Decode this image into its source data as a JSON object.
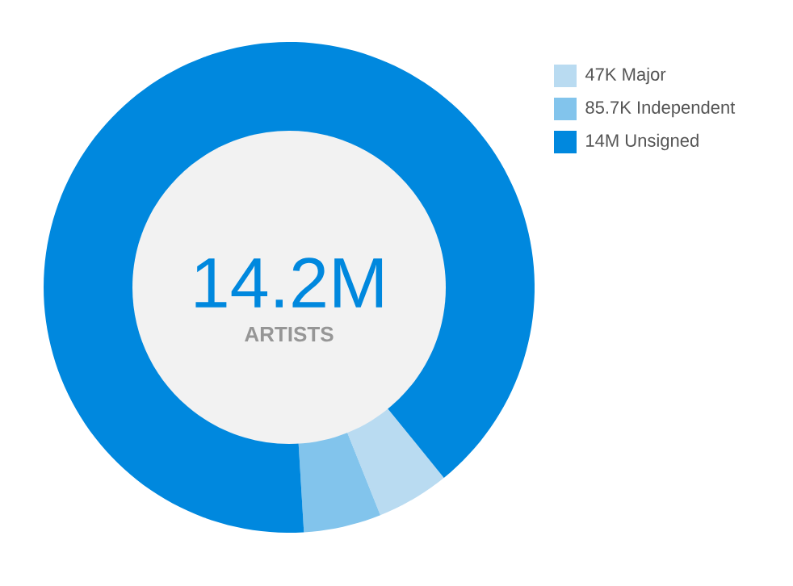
{
  "chart_data": {
    "type": "donut",
    "categories": [
      "47K Major",
      "85.7K Independent",
      "14M Unsigned"
    ],
    "values": [
      4.8,
      5.1,
      90.1
    ],
    "colors": [
      "#b9dbf1",
      "#82c4ec",
      "#0088de"
    ],
    "legend": "top right",
    "annotations": [
      "14.2M",
      "ARTISTS"
    ]
  }
}
